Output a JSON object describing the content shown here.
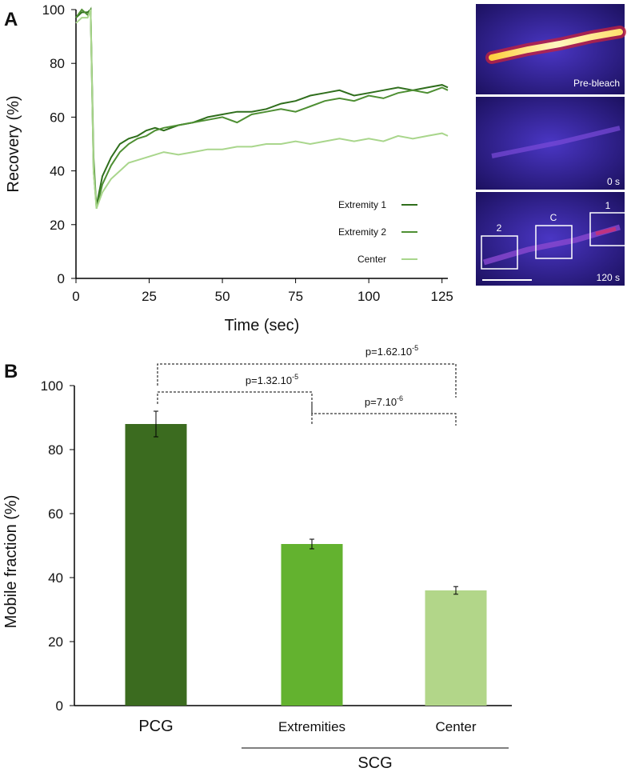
{
  "figure": {
    "panel_labels": [
      "A",
      "B"
    ],
    "images": {
      "panels": [
        "Pre-bleach",
        "0 s",
        "120 s"
      ],
      "roi_labels": [
        "2",
        "C",
        "1"
      ]
    }
  },
  "chart_data": [
    {
      "type": "line",
      "xlabel": "Time (sec)",
      "ylabel": "Recovery (%)",
      "x": [
        0,
        2,
        4,
        5,
        6,
        7,
        9,
        12,
        15,
        18,
        21,
        24,
        27,
        30,
        35,
        40,
        45,
        50,
        55,
        60,
        65,
        70,
        75,
        80,
        85,
        90,
        95,
        100,
        105,
        110,
        115,
        120,
        125,
        127
      ],
      "series": [
        {
          "name": "Extremity 1",
          "color": "#2f6e1c",
          "values": [
            97,
            99,
            99,
            100,
            40,
            27,
            38,
            45,
            50,
            52,
            53,
            55,
            56,
            55,
            57,
            58,
            60,
            61,
            62,
            62,
            63,
            65,
            66,
            68,
            69,
            70,
            68,
            69,
            70,
            71,
            70,
            71,
            72,
            71
          ]
        },
        {
          "name": "Extremity 2",
          "color": "#4e8f33",
          "values": [
            97,
            100,
            98,
            100,
            45,
            26,
            35,
            42,
            47,
            50,
            52,
            53,
            55,
            56,
            57,
            58,
            59,
            60,
            58,
            61,
            62,
            63,
            62,
            64,
            66,
            67,
            66,
            68,
            67,
            69,
            70,
            69,
            71,
            70
          ]
        },
        {
          "name": "Center",
          "color": "#a9d68c",
          "values": [
            95,
            97,
            97,
            100,
            40,
            26,
            32,
            37,
            40,
            43,
            44,
            45,
            46,
            47,
            46,
            47,
            48,
            48,
            49,
            49,
            50,
            50,
            51,
            50,
            51,
            52,
            51,
            52,
            51,
            53,
            52,
            53,
            54,
            53
          ]
        }
      ],
      "xlim": [
        0,
        127
      ],
      "xticks": [
        0,
        25,
        50,
        75,
        100,
        125
      ],
      "ylim": [
        0,
        100
      ],
      "yticks": [
        0,
        20,
        40,
        60,
        80,
        100
      ],
      "legend": "right"
    },
    {
      "type": "bar",
      "ylabel": "Mobile fraction (%)",
      "categories": [
        "PCG",
        "Extremities",
        "Center"
      ],
      "group_label": "SCG",
      "values": [
        88,
        50.5,
        36
      ],
      "errors": [
        4,
        1.5,
        1.2
      ],
      "colors": [
        "#3b6b1f",
        "#63b22f",
        "#b2d689"
      ],
      "ylim": [
        0,
        100
      ],
      "yticks": [
        0,
        20,
        40,
        60,
        80,
        100
      ],
      "comparisons": [
        {
          "text": "p=1.62.10",
          "exponent": "-5"
        },
        {
          "text": "p=1.32.10",
          "exponent": "-5"
        },
        {
          "text": "p=7.10",
          "exponent": "-6"
        }
      ]
    }
  ]
}
